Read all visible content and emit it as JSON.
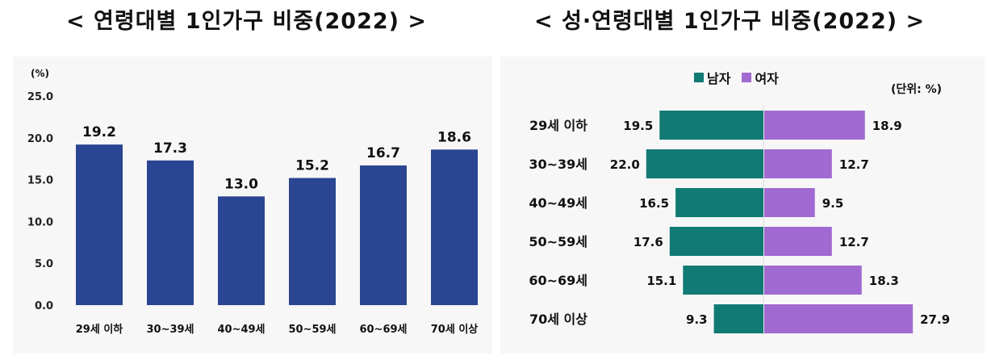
{
  "titles": {
    "left": "< 연령대별 1인가구 비중(2022) >",
    "right": "< 성·연령대별 1인가구 비중(2022) >"
  },
  "chart_data": [
    {
      "type": "bar",
      "title": "< 연령대별 1인가구 비중(2022) >",
      "unit": "(%)",
      "categories": [
        "29세 이하",
        "30~39세",
        "40~49세",
        "50~59세",
        "60~69세",
        "70세 이상"
      ],
      "values": [
        19.2,
        17.3,
        13.0,
        15.2,
        16.7,
        18.6
      ],
      "value_labels": [
        "19.2",
        "17.3",
        "13.0",
        "15.2",
        "16.7",
        "18.6"
      ],
      "yticks": [
        "0.0",
        "5.0",
        "10.0",
        "15.0",
        "20.0",
        "25.0"
      ],
      "ylim": [
        0,
        25
      ],
      "color": "#2a4592",
      "grid": false
    },
    {
      "type": "bar",
      "orientation": "horizontal-diverging",
      "title": "< 성·연령대별 1인가구 비중(2022) >",
      "unit": "(단위: %)",
      "categories": [
        "29세 이하",
        "30~39세",
        "40~49세",
        "50~59세",
        "60~69세",
        "70세 이상"
      ],
      "legend_position": "top",
      "series": [
        {
          "name": "남자",
          "values": [
            19.5,
            22.0,
            16.5,
            17.6,
            15.1,
            9.3
          ],
          "labels": [
            "19.5",
            "22.0",
            "16.5",
            "17.6",
            "15.1",
            "9.3"
          ],
          "color": "#117a74"
        },
        {
          "name": "여자",
          "values": [
            18.9,
            12.7,
            9.5,
            12.7,
            18.3,
            27.9
          ],
          "labels": [
            "18.9",
            "12.7",
            "9.5",
            "12.7",
            "18.3",
            "27.9"
          ],
          "color": "#a06ad2"
        }
      ],
      "grid": false
    }
  ]
}
